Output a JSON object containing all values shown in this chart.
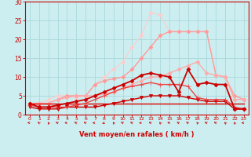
{
  "xlabel": "Vent moyen/en rafales ( km/h )",
  "bg_color": "#cceef0",
  "grid_color": "#aad8da",
  "xlim": [
    -0.5,
    23.5
  ],
  "ylim": [
    0,
    30
  ],
  "yticks": [
    0,
    5,
    10,
    15,
    20,
    25,
    30
  ],
  "xticks": [
    0,
    1,
    2,
    3,
    4,
    5,
    6,
    7,
    8,
    9,
    10,
    11,
    12,
    13,
    14,
    15,
    16,
    17,
    18,
    19,
    20,
    21,
    22,
    23
  ],
  "series": [
    {
      "x": [
        0,
        1,
        2,
        3,
        4,
        5,
        6,
        7,
        8,
        9,
        10,
        11,
        12,
        13,
        14,
        15,
        16,
        17,
        18,
        19,
        20,
        21,
        22,
        23
      ],
      "y": [
        3,
        3,
        3,
        3,
        3,
        3,
        3,
        3,
        3,
        3,
        3,
        3,
        3,
        3,
        3,
        3,
        3,
        3,
        3,
        3,
        3,
        3,
        3,
        3
      ],
      "color": "#dd0000",
      "marker": null,
      "markersize": 0,
      "linewidth": 1.0,
      "zorder": 5
    },
    {
      "x": [
        0,
        1,
        2,
        3,
        4,
        5,
        6,
        7,
        8,
        9,
        10,
        11,
        12,
        13,
        14,
        15,
        16,
        17,
        18,
        19,
        20,
        21,
        22,
        23
      ],
      "y": [
        2,
        1.5,
        1.5,
        1.5,
        2,
        2,
        2,
        2,
        2.5,
        3,
        3.5,
        4,
        4.5,
        5,
        5,
        5,
        5,
        4.5,
        4,
        3.5,
        3.5,
        3.5,
        1.5,
        1.5
      ],
      "color": "#cc0000",
      "marker": "v",
      "markersize": 3.0,
      "linewidth": 1.0,
      "zorder": 5
    },
    {
      "x": [
        0,
        1,
        2,
        3,
        4,
        5,
        6,
        7,
        8,
        9,
        10,
        11,
        12,
        13,
        14,
        15,
        16,
        17,
        18,
        19,
        20,
        21,
        22,
        23
      ],
      "y": [
        2.5,
        2,
        2,
        2,
        2,
        2.5,
        3,
        4,
        5,
        6,
        7,
        7.5,
        8,
        8.5,
        8,
        8,
        8,
        7.5,
        4.5,
        4,
        4,
        4,
        2,
        1.5
      ],
      "color": "#ee4444",
      "marker": "+",
      "markersize": 4.5,
      "linewidth": 1.0,
      "zorder": 5
    },
    {
      "x": [
        0,
        1,
        2,
        3,
        4,
        5,
        6,
        7,
        8,
        9,
        10,
        11,
        12,
        13,
        14,
        15,
        16,
        17,
        18,
        19,
        20,
        21,
        22,
        23
      ],
      "y": [
        3,
        2,
        2,
        2.5,
        3,
        3.5,
        4,
        5,
        6,
        7,
        8,
        9,
        10.5,
        11,
        10.5,
        10,
        6,
        12,
        8,
        8.5,
        8,
        8,
        1.5,
        1.5
      ],
      "color": "#cc0000",
      "marker": "D",
      "markersize": 2.5,
      "linewidth": 1.3,
      "zorder": 6
    },
    {
      "x": [
        0,
        1,
        2,
        3,
        4,
        5,
        6,
        7,
        8,
        9,
        10,
        11,
        12,
        13,
        14,
        15,
        16,
        17,
        18,
        19,
        20,
        21,
        22,
        23
      ],
      "y": [
        3,
        3,
        3,
        4,
        4.5,
        5,
        5,
        5,
        5.5,
        6,
        7,
        8,
        9,
        10,
        10,
        11,
        12,
        13,
        14,
        11,
        10.5,
        10,
        4,
        4
      ],
      "color": "#ffaaaa",
      "marker": "D",
      "markersize": 2.5,
      "linewidth": 1.0,
      "zorder": 4
    },
    {
      "x": [
        0,
        1,
        2,
        3,
        4,
        5,
        6,
        7,
        8,
        9,
        10,
        11,
        12,
        13,
        14,
        15,
        16,
        17,
        18,
        19,
        20,
        21,
        22,
        23
      ],
      "y": [
        3,
        3,
        3,
        4,
        5,
        5,
        5,
        8,
        9,
        9.5,
        10,
        12,
        15,
        18,
        21,
        22,
        22,
        22,
        22,
        22,
        10.5,
        10,
        5,
        4
      ],
      "color": "#ff9999",
      "marker": "D",
      "markersize": 2.5,
      "linewidth": 1.0,
      "zorder": 3
    },
    {
      "x": [
        0,
        1,
        2,
        3,
        4,
        5,
        6,
        7,
        8,
        9,
        10,
        11,
        12,
        13,
        14,
        15,
        16,
        17,
        18,
        19,
        20,
        21,
        22,
        23
      ],
      "y": [
        3,
        3,
        4,
        5,
        5,
        4.5,
        5,
        8,
        10,
        12,
        14,
        18,
        21,
        27,
        26.5,
        22,
        22,
        22,
        22,
        22,
        10.5,
        10,
        5,
        4
      ],
      "color": "#ffcccc",
      "marker": "D",
      "markersize": 2.5,
      "linewidth": 0.8,
      "zorder": 2
    }
  ],
  "arrow_color": "#cc0000",
  "tick_color": "#cc0000",
  "spine_color": "#cc0000"
}
